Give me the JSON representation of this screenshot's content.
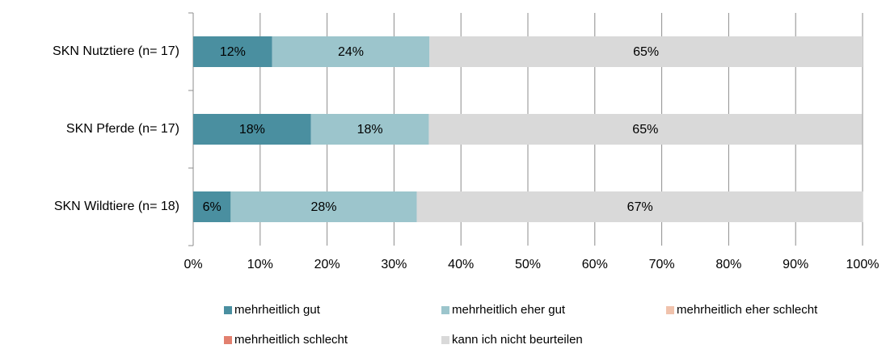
{
  "chart_data": {
    "type": "stacked-barh",
    "categories": [
      "SKN Nutztiere (n= 17)",
      "SKN Pferde (n= 17)",
      "SKN Wildtiere (n= 18)"
    ],
    "series": [
      {
        "name": "mehrheitlich gut",
        "color": "#4a8fa0",
        "values": [
          11.8,
          17.6,
          5.6
        ],
        "value_labels": [
          "12%",
          "18%",
          "6%"
        ]
      },
      {
        "name": "mehrheitlich eher gut",
        "color": "#9cc5cc",
        "values": [
          23.5,
          17.6,
          27.8
        ],
        "value_labels": [
          "24%",
          "18%",
          "28%"
        ]
      },
      {
        "name": "mehrheitlich eher schlecht",
        "color": "#f0c2ac",
        "values": [
          0,
          0,
          0
        ]
      },
      {
        "name": "mehrheitlich schlecht",
        "color": "#e2806f",
        "values": [
          0,
          0,
          0
        ]
      },
      {
        "name": "kann ich nicht beurteilen",
        "color": "#d9d9d9",
        "values": [
          64.7,
          64.7,
          66.7
        ],
        "value_labels": [
          "65%",
          "65%",
          "67%"
        ]
      }
    ],
    "xlim": [
      0,
      100
    ],
    "xticks": [
      {
        "value": 0,
        "label": "0%"
      },
      {
        "value": 10,
        "label": "10%"
      },
      {
        "value": 20,
        "label": "20%"
      },
      {
        "value": 30,
        "label": "30%"
      },
      {
        "value": 40,
        "label": "40%"
      },
      {
        "value": 50,
        "label": "50%"
      },
      {
        "value": 60,
        "label": "60%"
      },
      {
        "value": 70,
        "label": "70%"
      },
      {
        "value": 80,
        "label": "80%"
      },
      {
        "value": 90,
        "label": "90%"
      },
      {
        "value": 100,
        "label": "100%"
      }
    ],
    "grid": true,
    "legend": "bottom"
  }
}
